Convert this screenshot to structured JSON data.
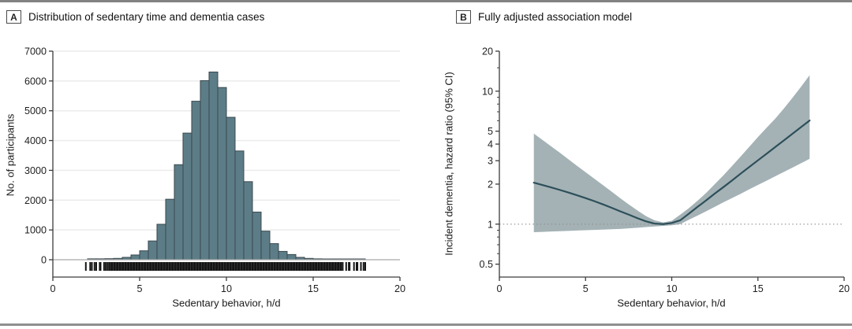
{
  "figure": {
    "panels": [
      {
        "label": "A",
        "title": "Distribution of sedentary time and dementia cases",
        "xlabel": "Sedentary behavior, h/d",
        "ylabel": "No. of participants"
      },
      {
        "label": "B",
        "title": "Fully adjusted association model",
        "xlabel": "Sedentary behavior, h/d",
        "ylabel": "Incident dementia, hazard ratio (95% CI)"
      }
    ]
  },
  "colors": {
    "bar_fill": "#5c7d87",
    "bar_stroke": "#3a474e",
    "baseline": "#a9a9a9",
    "grid": "#ebebeb",
    "axis": "#3c3c3c",
    "rug": "#141414",
    "band_fill": "#a4b2b5",
    "line_stroke": "#2d4f5a",
    "reference_dotted": "#8f8f8f",
    "rule": "#828282"
  },
  "chart_data": [
    {
      "type": "bar",
      "title": "Distribution of sedentary time and dementia cases",
      "xlabel": "Sedentary behavior, h/d",
      "ylabel": "No. of participants",
      "xlim": [
        0,
        20
      ],
      "ylim": [
        0,
        7000
      ],
      "xticks": [
        0,
        5,
        10,
        15,
        20
      ],
      "yticks": [
        0,
        1000,
        2000,
        3000,
        4000,
        5000,
        6000,
        7000
      ],
      "grid": true,
      "bin_start": 2.0,
      "bin_width": 0.5,
      "values": [
        30,
        30,
        35,
        45,
        80,
        160,
        300,
        630,
        1190,
        2030,
        3190,
        4250,
        5320,
        6010,
        6300,
        5780,
        4780,
        3650,
        2620,
        1600,
        960,
        540,
        280,
        175,
        80,
        45,
        30,
        20,
        15,
        10,
        8,
        5
      ],
      "rug": {
        "solid_range": [
          3.2,
          16.75
        ],
        "left_ticks": [
          1.9,
          2.15,
          2.25,
          2.4,
          2.5,
          2.7,
          2.75,
          2.95,
          3.05,
          3.15
        ],
        "right_ticks": [
          16.9,
          17.05,
          17.1,
          17.35,
          17.5,
          17.55,
          17.75,
          17.9,
          18.0
        ]
      }
    },
    {
      "type": "line",
      "title": "Fully adjusted association model",
      "xlabel": "Sedentary behavior, h/d",
      "ylabel": "Incident dementia, hazard ratio (95% CI)",
      "yscale": "log",
      "xlim": [
        0,
        20
      ],
      "ylim": [
        0.4,
        20
      ],
      "xticks": [
        0,
        5,
        10,
        15,
        20
      ],
      "yticks": [
        0.5,
        1,
        2,
        3,
        4,
        5,
        10,
        20
      ],
      "yminorticks": [
        0.6,
        0.7,
        0.8,
        0.9,
        6,
        7,
        8,
        9,
        15
      ],
      "reference_line": 1.0,
      "x": [
        2,
        2.5,
        3,
        3.5,
        4,
        4.5,
        5,
        5.5,
        6,
        6.5,
        7,
        7.5,
        8,
        8.5,
        9,
        9.5,
        10,
        10.5,
        11,
        11.5,
        12,
        12.5,
        13,
        13.5,
        14,
        14.5,
        15,
        15.5,
        16,
        16.5,
        17,
        17.5,
        18
      ],
      "series": [
        {
          "name": "hazard_ratio",
          "values": [
            2.05,
            1.97,
            1.89,
            1.81,
            1.73,
            1.65,
            1.57,
            1.49,
            1.41,
            1.33,
            1.25,
            1.18,
            1.11,
            1.05,
            1.01,
            1.0,
            1.02,
            1.07,
            1.2,
            1.35,
            1.51,
            1.7,
            1.9,
            2.13,
            2.4,
            2.69,
            3.02,
            3.38,
            3.8,
            4.26,
            4.78,
            5.37,
            6.02
          ]
        },
        {
          "name": "ci_lower",
          "values": [
            0.87,
            0.875,
            0.88,
            0.885,
            0.89,
            0.895,
            0.9,
            0.905,
            0.91,
            0.915,
            0.92,
            0.93,
            0.94,
            0.95,
            0.96,
            0.97,
            0.98,
            1.0,
            1.08,
            1.16,
            1.25,
            1.35,
            1.46,
            1.57,
            1.69,
            1.83,
            1.97,
            2.12,
            2.29,
            2.47,
            2.66,
            2.87,
            3.1
          ]
        },
        {
          "name": "ci_upper",
          "values": [
            4.8,
            4.3,
            3.85,
            3.45,
            3.08,
            2.75,
            2.46,
            2.2,
            1.97,
            1.76,
            1.57,
            1.41,
            1.27,
            1.15,
            1.07,
            1.03,
            1.06,
            1.18,
            1.32,
            1.5,
            1.72,
            2.0,
            2.33,
            2.74,
            3.23,
            3.82,
            4.52,
            5.3,
            6.2,
            7.4,
            8.9,
            10.8,
            13.2
          ]
        }
      ]
    }
  ]
}
